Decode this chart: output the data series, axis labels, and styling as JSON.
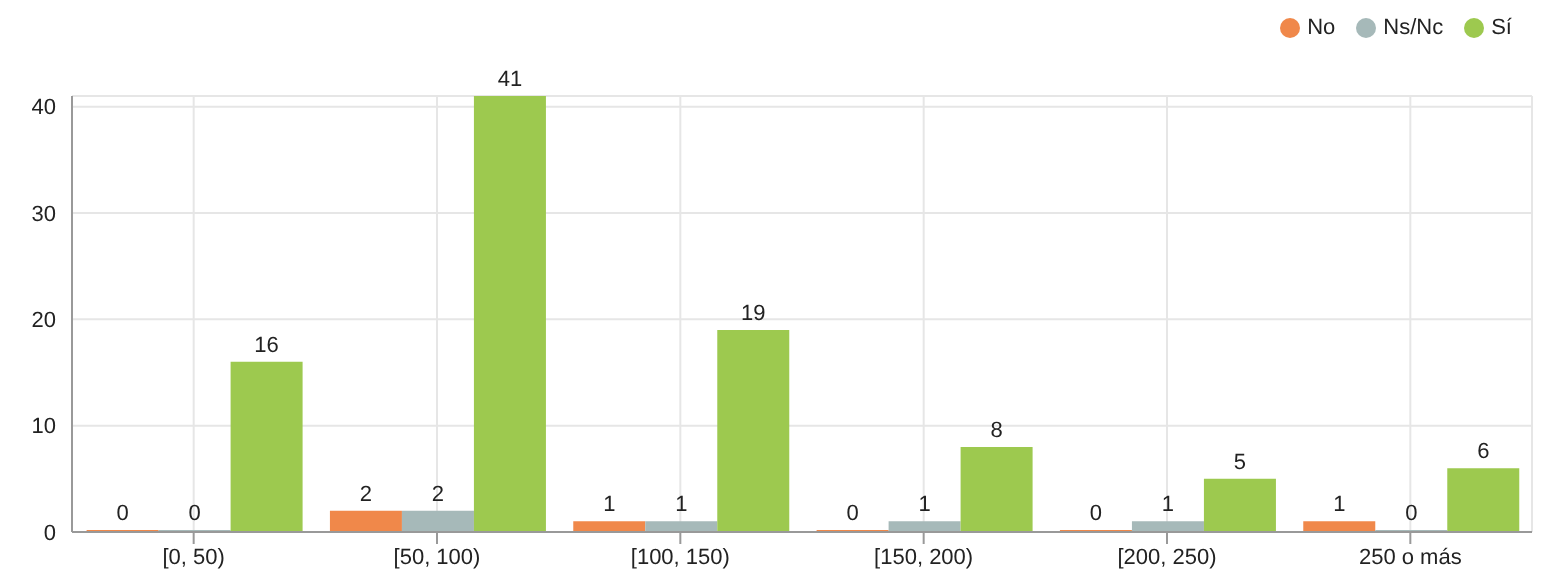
{
  "chart_data": {
    "type": "bar",
    "categories": [
      "[0, 50)",
      "[50, 100)",
      "[100, 150)",
      "[150, 200)",
      "[200, 250)",
      "250 o más"
    ],
    "series": [
      {
        "name": "No",
        "color": "#f0884a",
        "values": [
          0,
          2,
          1,
          0,
          0,
          1
        ]
      },
      {
        "name": "Ns/Nc",
        "color": "#a6b9b9",
        "values": [
          0,
          2,
          1,
          1,
          1,
          0
        ]
      },
      {
        "name": "Sí",
        "color": "#9dc94f",
        "values": [
          16,
          41,
          19,
          8,
          5,
          6
        ]
      }
    ],
    "ylim": [
      0,
      41
    ],
    "yticks": [
      0,
      10,
      20,
      30,
      40
    ],
    "grid": true,
    "legend": "top right",
    "data_labels": true
  }
}
